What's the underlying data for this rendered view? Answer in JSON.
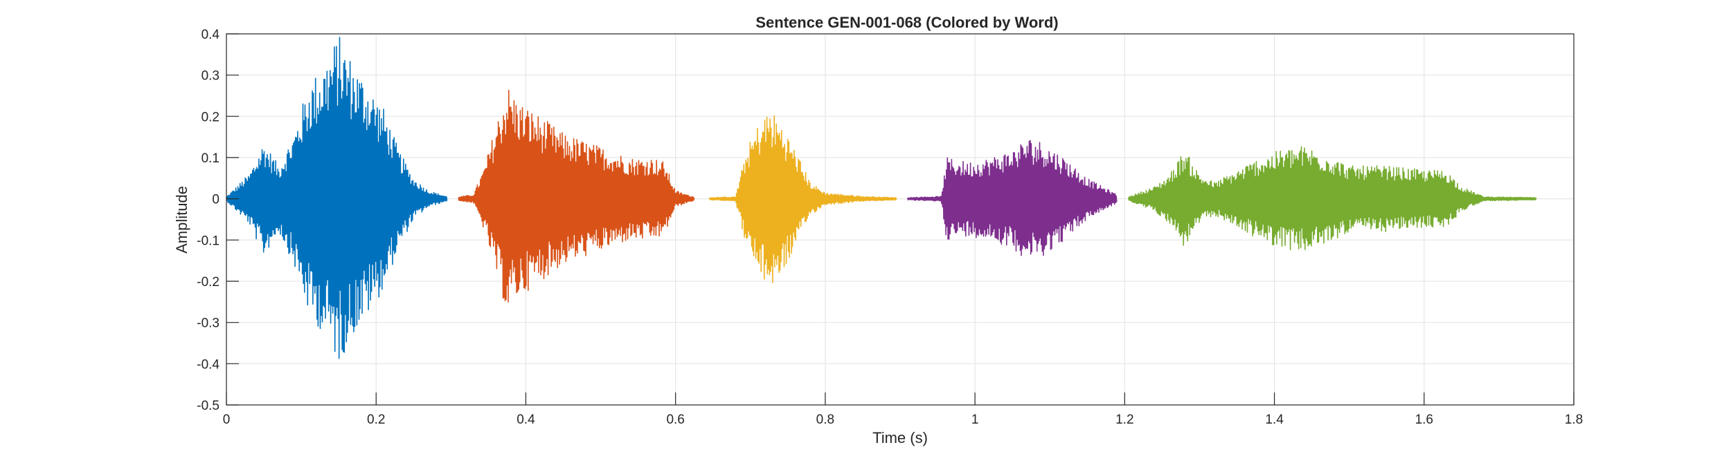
{
  "chart_data": {
    "type": "line",
    "title": "Sentence GEN-001-068 (Colored by Word)",
    "xlabel": "Time (s)",
    "ylabel": "Amplitude",
    "xlim": [
      0,
      1.8
    ],
    "ylim": [
      -0.5,
      0.4
    ],
    "xticks": [
      0,
      0.2,
      0.4,
      0.6,
      0.8,
      1,
      1.2,
      1.4,
      1.6,
      1.8
    ],
    "xtick_labels": [
      "0",
      "0.2",
      "0.4",
      "0.6",
      "0.8",
      "1",
      "1.2",
      "1.4",
      "1.6",
      "1.8"
    ],
    "yticks": [
      -0.5,
      -0.4,
      -0.3,
      -0.2,
      -0.1,
      0,
      0.1,
      0.2,
      0.3,
      0.4
    ],
    "ytick_labels": [
      "-0.5",
      "-0.4",
      "-0.3",
      "-0.2",
      "-0.1",
      "0",
      "0.1",
      "0.2",
      "0.3",
      "0.4"
    ],
    "grid": true,
    "series": [
      {
        "color": "#0072BD",
        "t_start": 0.0,
        "t_end": 0.295,
        "envelope": [
          [
            0.0,
            0.005
          ],
          [
            0.03,
            0.06
          ],
          [
            0.05,
            0.14
          ],
          [
            0.07,
            0.08
          ],
          [
            0.09,
            0.16
          ],
          [
            0.11,
            0.28
          ],
          [
            0.13,
            0.33
          ],
          [
            0.15,
            0.4
          ],
          [
            0.17,
            0.33
          ],
          [
            0.19,
            0.28
          ],
          [
            0.21,
            0.22
          ],
          [
            0.23,
            0.12
          ],
          [
            0.25,
            0.05
          ],
          [
            0.27,
            0.02
          ],
          [
            0.295,
            0.005
          ]
        ]
      },
      {
        "color": "#D95319",
        "t_start": 0.31,
        "t_end": 0.625,
        "envelope": [
          [
            0.31,
            0.005
          ],
          [
            0.33,
            0.01
          ],
          [
            0.345,
            0.08
          ],
          [
            0.36,
            0.18
          ],
          [
            0.375,
            0.28
          ],
          [
            0.39,
            0.24
          ],
          [
            0.42,
            0.2
          ],
          [
            0.45,
            0.16
          ],
          [
            0.48,
            0.14
          ],
          [
            0.51,
            0.12
          ],
          [
            0.54,
            0.1
          ],
          [
            0.57,
            0.1
          ],
          [
            0.585,
            0.09
          ],
          [
            0.6,
            0.02
          ],
          [
            0.625,
            0.004
          ]
        ]
      },
      {
        "color": "#EDB120",
        "t_start": 0.645,
        "t_end": 0.895,
        "envelope": [
          [
            0.645,
            0.003
          ],
          [
            0.68,
            0.005
          ],
          [
            0.695,
            0.12
          ],
          [
            0.71,
            0.18
          ],
          [
            0.725,
            0.22
          ],
          [
            0.74,
            0.19
          ],
          [
            0.76,
            0.12
          ],
          [
            0.78,
            0.04
          ],
          [
            0.8,
            0.015
          ],
          [
            0.85,
            0.006
          ],
          [
            0.895,
            0.003
          ]
        ]
      },
      {
        "color": "#7E2F8E",
        "t_start": 0.91,
        "t_end": 1.19,
        "envelope": [
          [
            0.91,
            0.003
          ],
          [
            0.955,
            0.006
          ],
          [
            0.962,
            0.1
          ],
          [
            0.99,
            0.09
          ],
          [
            1.02,
            0.1
          ],
          [
            1.05,
            0.12
          ],
          [
            1.07,
            0.15
          ],
          [
            1.09,
            0.14
          ],
          [
            1.12,
            0.1
          ],
          [
            1.15,
            0.05
          ],
          [
            1.17,
            0.03
          ],
          [
            1.19,
            0.01
          ]
        ]
      },
      {
        "color": "#77AC30",
        "t_start": 1.205,
        "t_end": 1.75,
        "envelope": [
          [
            1.205,
            0.005
          ],
          [
            1.24,
            0.03
          ],
          [
            1.26,
            0.06
          ],
          [
            1.28,
            0.12
          ],
          [
            1.3,
            0.06
          ],
          [
            1.32,
            0.04
          ],
          [
            1.35,
            0.07
          ],
          [
            1.38,
            0.1
          ],
          [
            1.41,
            0.12
          ],
          [
            1.44,
            0.13
          ],
          [
            1.47,
            0.11
          ],
          [
            1.5,
            0.08
          ],
          [
            1.55,
            0.08
          ],
          [
            1.6,
            0.07
          ],
          [
            1.63,
            0.07
          ],
          [
            1.65,
            0.03
          ],
          [
            1.68,
            0.005
          ],
          [
            1.75,
            0.003
          ]
        ]
      }
    ]
  }
}
